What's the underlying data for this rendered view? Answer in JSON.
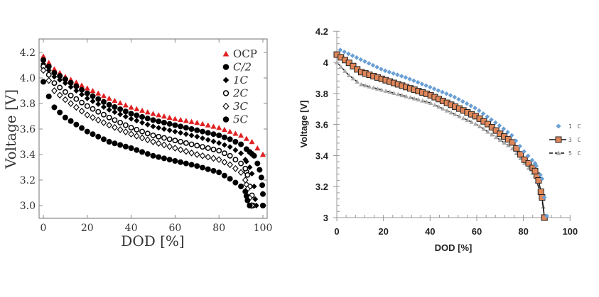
{
  "chart_data": [
    {
      "type": "scatter",
      "title": "",
      "xlabel": "DOD [%]",
      "ylabel": "Voltage [V]",
      "xlim": [
        -2,
        102
      ],
      "ylim": [
        2.9,
        4.3
      ],
      "xticks": [
        "0",
        "20",
        "40",
        "60",
        "80",
        "100"
      ],
      "xtick_values": [
        0,
        20,
        40,
        60,
        80,
        100
      ],
      "yticks": [
        "3.0",
        "3.2",
        "3.4",
        "3.6",
        "3.8",
        "4.0",
        "4.2"
      ],
      "ytick_values": [
        3.0,
        3.2,
        3.4,
        3.6,
        3.8,
        4.0,
        4.2
      ],
      "legend_position": "top-right",
      "series": [
        {
          "name": "OCP",
          "marker": "triangle",
          "color": "#e02020",
          "points": [
            [
              0,
              4.17
            ],
            [
              5,
              4.07
            ],
            [
              10,
              4.01
            ],
            [
              20,
              3.92
            ],
            [
              30,
              3.84
            ],
            [
              40,
              3.77
            ],
            [
              50,
              3.72
            ],
            [
              60,
              3.68
            ],
            [
              70,
              3.65
            ],
            [
              80,
              3.61
            ],
            [
              85,
              3.58
            ],
            [
              90,
              3.55
            ],
            [
              95,
              3.5
            ],
            [
              100,
              3.4
            ]
          ]
        },
        {
          "name": "C/2",
          "marker": "circle-filled",
          "color": "#000000",
          "points": [
            [
              0,
              4.14
            ],
            [
              5,
              4.04
            ],
            [
              10,
              3.99
            ],
            [
              20,
              3.88
            ],
            [
              30,
              3.79
            ],
            [
              40,
              3.72
            ],
            [
              50,
              3.67
            ],
            [
              60,
              3.63
            ],
            [
              70,
              3.59
            ],
            [
              80,
              3.55
            ],
            [
              85,
              3.52
            ],
            [
              90,
              3.48
            ],
            [
              94,
              3.42
            ],
            [
              96,
              3.39
            ],
            [
              97.5,
              3.33
            ],
            [
              98.5,
              3.28
            ],
            [
              99.3,
              3.22
            ],
            [
              99.7,
              3.16
            ],
            [
              100,
              3.09
            ],
            [
              100,
              3.0
            ]
          ]
        },
        {
          "name": "1C",
          "marker": "diamond-filled",
          "color": "#000000",
          "points": [
            [
              0,
              4.11
            ],
            [
              5,
              4.01
            ],
            [
              10,
              3.96
            ],
            [
              20,
              3.84
            ],
            [
              30,
              3.75
            ],
            [
              40,
              3.68
            ],
            [
              50,
              3.62
            ],
            [
              60,
              3.58
            ],
            [
              70,
              3.54
            ],
            [
              80,
              3.49
            ],
            [
              85,
              3.46
            ],
            [
              90,
              3.41
            ],
            [
              92,
              3.36
            ],
            [
              94,
              3.3
            ],
            [
              95,
              3.25
            ],
            [
              96,
              3.15
            ],
            [
              96.5,
              3.05
            ],
            [
              97,
              3.0
            ]
          ]
        },
        {
          "name": "2C",
          "marker": "circle-open",
          "color": "#000000",
          "points": [
            [
              0,
              4.09
            ],
            [
              5,
              3.96
            ],
            [
              10,
              3.89
            ],
            [
              20,
              3.78
            ],
            [
              30,
              3.69
            ],
            [
              40,
              3.61
            ],
            [
              50,
              3.55
            ],
            [
              60,
              3.51
            ],
            [
              70,
              3.47
            ],
            [
              80,
              3.43
            ],
            [
              85,
              3.39
            ],
            [
              90,
              3.33
            ],
            [
              92,
              3.29
            ],
            [
              93,
              3.24
            ],
            [
              94,
              3.15
            ],
            [
              95,
              3.08
            ],
            [
              95.5,
              3.0
            ]
          ]
        },
        {
          "name": "3C",
          "marker": "diamond-open",
          "color": "#000000",
          "points": [
            [
              0,
              4.06
            ],
            [
              5,
              3.9
            ],
            [
              10,
              3.83
            ],
            [
              20,
              3.71
            ],
            [
              30,
              3.63
            ],
            [
              40,
              3.56
            ],
            [
              50,
              3.5
            ],
            [
              60,
              3.45
            ],
            [
              70,
              3.4
            ],
            [
              80,
              3.36
            ],
            [
              85,
              3.32
            ],
            [
              90,
              3.26
            ],
            [
              92,
              3.2
            ],
            [
              93,
              3.13
            ],
            [
              94,
              3.06
            ],
            [
              95,
              3.0
            ]
          ]
        },
        {
          "name": "5C",
          "marker": "circle-filled",
          "color": "#000000",
          "points": [
            [
              0,
              3.97
            ],
            [
              2,
              3.88
            ],
            [
              3,
              3.83
            ],
            [
              5,
              3.77
            ],
            [
              10,
              3.69
            ],
            [
              20,
              3.58
            ],
            [
              30,
              3.5
            ],
            [
              40,
              3.45
            ],
            [
              50,
              3.39
            ],
            [
              60,
              3.35
            ],
            [
              70,
              3.31
            ],
            [
              80,
              3.26
            ],
            [
              85,
              3.21
            ],
            [
              90,
              3.15
            ],
            [
              92,
              3.11
            ],
            [
              93,
              3.04
            ],
            [
              94,
              3.0
            ]
          ]
        }
      ]
    },
    {
      "type": "line",
      "title": "",
      "xlabel": "DOD [%]",
      "ylabel": "Voltage [V]",
      "xlim": [
        0,
        100
      ],
      "ylim": [
        3,
        4.2
      ],
      "xticks": [
        "0",
        "20",
        "40",
        "60",
        "80",
        "100"
      ],
      "xtick_values": [
        0,
        20,
        40,
        60,
        80,
        100
      ],
      "yticks": [
        "3",
        "3.2",
        "3.4",
        "3.6",
        "3.8",
        "4",
        "4.2"
      ],
      "ytick_values": [
        3,
        3.2,
        3.4,
        3.6,
        3.8,
        4,
        4.2
      ],
      "legend_position": "right",
      "series": [
        {
          "name": "1 C",
          "marker": "diamond",
          "color": "#6a9fd4",
          "line": false,
          "points": [
            [
              1.5,
              4.08
            ],
            [
              10,
              4.02
            ],
            [
              20,
              3.95
            ],
            [
              30,
              3.9
            ],
            [
              40,
              3.84
            ],
            [
              50,
              3.78
            ],
            [
              60,
              3.7
            ],
            [
              70,
              3.59
            ],
            [
              75,
              3.53
            ],
            [
              80,
              3.43
            ],
            [
              85,
              3.35
            ],
            [
              88,
              3.25
            ],
            [
              90,
              3.01
            ]
          ]
        },
        {
          "name": "3 C",
          "marker": "square",
          "color": "#e0875a",
          "line": true,
          "points": [
            [
              0,
              4.05
            ],
            [
              5,
              4.0
            ],
            [
              10,
              3.94
            ],
            [
              20,
              3.89
            ],
            [
              30,
              3.84
            ],
            [
              40,
              3.79
            ],
            [
              50,
              3.72
            ],
            [
              60,
              3.65
            ],
            [
              65,
              3.6
            ],
            [
              70,
              3.54
            ],
            [
              75,
              3.49
            ],
            [
              80,
              3.38
            ],
            [
              83,
              3.34
            ],
            [
              85,
              3.3
            ],
            [
              86.5,
              3.24
            ],
            [
              88,
              3.13
            ],
            [
              89,
              3.0
            ]
          ]
        },
        {
          "name": "5 C",
          "marker": "triangle",
          "color": "#a8a8a8",
          "line": true,
          "dashed": true,
          "points": [
            [
              0,
              4.0
            ],
            [
              5,
              3.92
            ],
            [
              10,
              3.86
            ],
            [
              20,
              3.82
            ],
            [
              30,
              3.78
            ],
            [
              40,
              3.74
            ],
            [
              50,
              3.67
            ],
            [
              60,
              3.6
            ],
            [
              70,
              3.5
            ],
            [
              75,
              3.45
            ],
            [
              80,
              3.36
            ],
            [
              85,
              3.27
            ],
            [
              87,
              3.17
            ],
            [
              88.5,
              3.07
            ],
            [
              89,
              3.0
            ]
          ]
        }
      ]
    }
  ]
}
